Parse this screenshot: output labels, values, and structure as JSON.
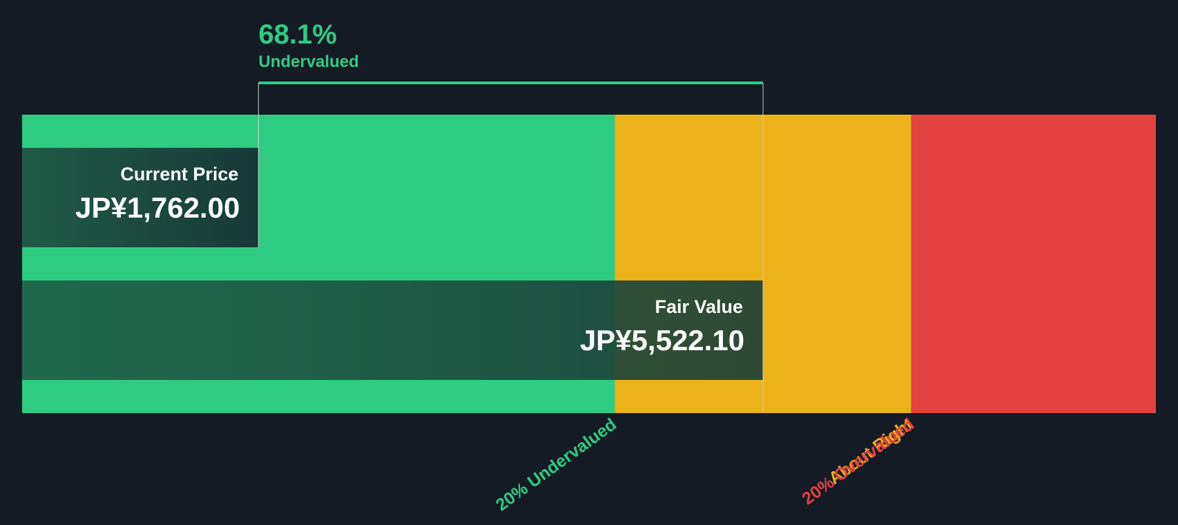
{
  "colors": {
    "background": "#151b24",
    "undervalued": "#2ecc82",
    "about_right": "#ebb21a",
    "overvalued": "#e44141",
    "overlay_dark": "#1a3d37",
    "text": "#ffffff"
  },
  "chart_data": {
    "type": "bar",
    "currency": "JP¥",
    "axis_range": [
      0,
      8450
    ],
    "zones": [
      {
        "name": "20% Undervalued",
        "from": 0,
        "to": 4417.68,
        "color": "#2ecc82"
      },
      {
        "name": "About Right",
        "from": 4417.68,
        "to": 6626.52,
        "color": "#ebb21a"
      },
      {
        "name": "20% Overvalued",
        "from": 6626.52,
        "to": 8450,
        "color": "#e44141"
      }
    ],
    "bars": [
      {
        "key": "current_price",
        "title": "Current Price",
        "value": 1762.0,
        "display": "JP¥1,762.00"
      },
      {
        "key": "fair_value",
        "title": "Fair Value",
        "value": 5522.1,
        "display": "JP¥5,522.10"
      }
    ],
    "discount": {
      "percent": "68.1%",
      "label": "Undervalued"
    }
  }
}
